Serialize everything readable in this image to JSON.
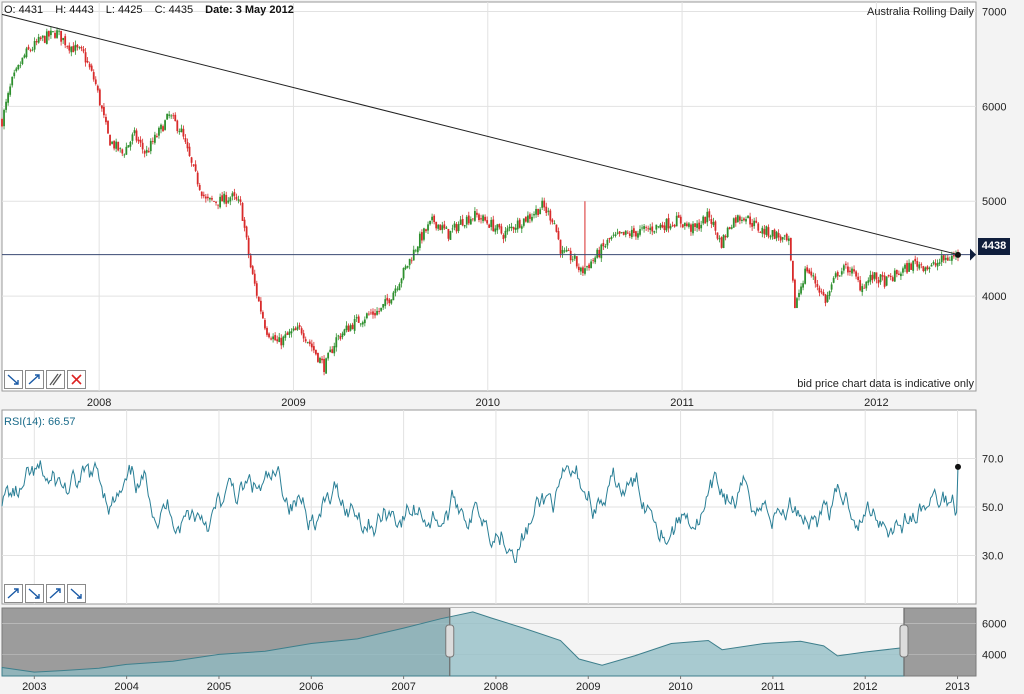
{
  "header": {
    "open": "O: 4431",
    "high": "H: 4443",
    "low": "L: 4425",
    "close": "C: 4435",
    "date": "Date: 3 May 2012",
    "title": "Australia Rolling Daily"
  },
  "note": "bid price chart data is indicative only",
  "rsi_label": "RSI(14): 66.57",
  "last_price_label": "4438",
  "main_tools": [
    "trend-down-icon",
    "trend-up-icon",
    "parallel-lines-icon",
    "delete-icon"
  ],
  "rsi_tools": [
    "trend-up-icon",
    "trend-down-icon",
    "trend-up-icon",
    "trend-down-icon"
  ],
  "colors": {
    "up": "#2d8f2d",
    "down": "#d82a2a",
    "rsi_line": "#2a7f96",
    "nav_fill": "#8fbcc4",
    "badge": "#0f1e3c"
  },
  "chart_data": [
    {
      "type": "candlestick",
      "title": "Australia Rolling Daily",
      "x_tick_labels": [
        "2008",
        "2009",
        "2010",
        "2011",
        "2012"
      ],
      "y_tick_labels": [
        "4000",
        "5000",
        "6000",
        "7000"
      ],
      "ylim": [
        3000,
        7100
      ],
      "x_range": [
        2007.5,
        2012.42
      ],
      "grid": true,
      "close_series": [
        [
          2007.5,
          5850
        ],
        [
          2007.55,
          6250
        ],
        [
          2007.62,
          6550
        ],
        [
          2007.7,
          6700
        ],
        [
          2007.78,
          6780
        ],
        [
          2007.84,
          6650
        ],
        [
          2007.92,
          6550
        ],
        [
          2007.98,
          6250
        ],
        [
          2008.05,
          5650
        ],
        [
          2008.12,
          5500
        ],
        [
          2008.18,
          5700
        ],
        [
          2008.24,
          5500
        ],
        [
          2008.3,
          5700
        ],
        [
          2008.36,
          5900
        ],
        [
          2008.42,
          5750
        ],
        [
          2008.48,
          5350
        ],
        [
          2008.55,
          5000
        ],
        [
          2008.62,
          5000
        ],
        [
          2008.68,
          5050
        ],
        [
          2008.73,
          4950
        ],
        [
          2008.78,
          4300
        ],
        [
          2008.82,
          3950
        ],
        [
          2008.86,
          3650
        ],
        [
          2008.92,
          3500
        ],
        [
          2008.98,
          3600
        ],
        [
          2009.04,
          3650
        ],
        [
          2009.1,
          3450
        ],
        [
          2009.16,
          3250
        ],
        [
          2009.22,
          3550
        ],
        [
          2009.3,
          3700
        ],
        [
          2009.38,
          3800
        ],
        [
          2009.45,
          3850
        ],
        [
          2009.5,
          4000
        ],
        [
          2009.58,
          4300
        ],
        [
          2009.65,
          4600
        ],
        [
          2009.72,
          4800
        ],
        [
          2009.8,
          4650
        ],
        [
          2009.87,
          4800
        ],
        [
          2009.94,
          4850
        ],
        [
          2010.02,
          4750
        ],
        [
          2010.08,
          4650
        ],
        [
          2010.14,
          4750
        ],
        [
          2010.22,
          4850
        ],
        [
          2010.28,
          4950
        ],
        [
          2010.34,
          4800
        ],
        [
          2010.38,
          4450
        ],
        [
          2010.44,
          4400
        ],
        [
          2010.48,
          4250
        ],
        [
          2010.55,
          4400
        ],
        [
          2010.63,
          4600
        ],
        [
          2010.72,
          4650
        ],
        [
          2010.82,
          4700
        ],
        [
          2010.9,
          4750
        ],
        [
          2010.98,
          4800
        ],
        [
          2011.06,
          4700
        ],
        [
          2011.14,
          4850
        ],
        [
          2011.2,
          4550
        ],
        [
          2011.26,
          4800
        ],
        [
          2011.32,
          4850
        ],
        [
          2011.4,
          4700
        ],
        [
          2011.48,
          4650
        ],
        [
          2011.55,
          4550
        ],
        [
          2011.58,
          3900
        ],
        [
          2011.64,
          4300
        ],
        [
          2011.7,
          4100
        ],
        [
          2011.74,
          3950
        ],
        [
          2011.8,
          4250
        ],
        [
          2011.86,
          4300
        ],
        [
          2011.92,
          4100
        ],
        [
          2011.98,
          4200
        ],
        [
          2012.05,
          4150
        ],
        [
          2012.12,
          4250
        ],
        [
          2012.2,
          4350
        ],
        [
          2012.28,
          4300
        ],
        [
          2012.34,
          4380
        ],
        [
          2012.42,
          4435
        ]
      ],
      "last_close": 4435,
      "horizontal_level": 4438,
      "trendline": [
        [
          2007.5,
          6970
        ],
        [
          2012.42,
          4438
        ]
      ]
    },
    {
      "type": "line",
      "title": "RSI(14): 66.57",
      "series_name": "RSI(14)",
      "x_tick_labels": [
        "2003",
        "2004",
        "2005",
        "2006",
        "2007",
        "2008",
        "2009",
        "2010",
        "2011",
        "2012",
        "2013"
      ],
      "y_tick_labels": [
        "30.0",
        "50.0",
        "70.0"
      ],
      "ylim": [
        10,
        90
      ],
      "x_range": [
        2002.65,
        2013.2
      ],
      "grid": true,
      "last_value": 66.57
    },
    {
      "type": "area",
      "title": "",
      "x_tick_labels": [
        "2003",
        "2004",
        "2005",
        "2006",
        "2007",
        "2008",
        "2009",
        "2010",
        "2011",
        "2012",
        "2013"
      ],
      "y_tick_labels": [
        "4000",
        "6000"
      ],
      "ylim": [
        2600,
        7000
      ],
      "x_range": [
        2002.65,
        2013.2
      ],
      "selected_range": [
        2007.5,
        2012.42
      ],
      "points": [
        [
          2002.65,
          3150
        ],
        [
          2003.0,
          2850
        ],
        [
          2003.3,
          2950
        ],
        [
          2003.7,
          3100
        ],
        [
          2004.0,
          3350
        ],
        [
          2004.5,
          3550
        ],
        [
          2005.0,
          4000
        ],
        [
          2005.5,
          4200
        ],
        [
          2006.0,
          4700
        ],
        [
          2006.5,
          5000
        ],
        [
          2007.0,
          5700
        ],
        [
          2007.4,
          6300
        ],
        [
          2007.75,
          6750
        ],
        [
          2007.95,
          6350
        ],
        [
          2008.3,
          5700
        ],
        [
          2008.7,
          4900
        ],
        [
          2008.9,
          3700
        ],
        [
          2009.15,
          3300
        ],
        [
          2009.5,
          3900
        ],
        [
          2009.9,
          4700
        ],
        [
          2010.3,
          4900
        ],
        [
          2010.45,
          4300
        ],
        [
          2010.9,
          4700
        ],
        [
          2011.3,
          4850
        ],
        [
          2011.55,
          4550
        ],
        [
          2011.7,
          3900
        ],
        [
          2012.0,
          4150
        ],
        [
          2012.42,
          4435
        ]
      ]
    }
  ]
}
